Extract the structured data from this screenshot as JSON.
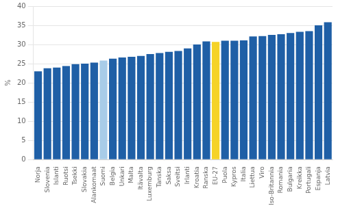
{
  "chart_data": {
    "type": "bar",
    "ylabel": "%",
    "categories": [
      "Norja",
      "Slovenia",
      "Islanti",
      "Ruotsi",
      "Tsekki",
      "Slovakia",
      "Alankomaat",
      "Suomi",
      "Belgia",
      "Unkari",
      "Malta",
      "Itävalta",
      "Luxemburg",
      "Tanska",
      "Saksa",
      "Sveitsi",
      "Irlanti",
      "Kroatia",
      "Ranska",
      "EU-27",
      "Puola",
      "Kypros",
      "Italia",
      "Liettua",
      "Viro",
      "Iso-Britannia",
      "Romania",
      "Bulgaria",
      "Kreikka",
      "Portugali",
      "Espanja",
      "Latvia"
    ],
    "values": [
      23.0,
      23.8,
      24.0,
      24.4,
      24.9,
      25.0,
      25.3,
      25.8,
      26.3,
      26.6,
      26.8,
      27.0,
      27.5,
      27.8,
      28.1,
      28.3,
      29.0,
      30.0,
      30.8,
      30.7,
      31.0,
      31.0,
      31.1,
      32.1,
      32.2,
      32.5,
      32.7,
      33.0,
      33.3,
      33.5,
      35.0,
      35.8
    ],
    "colors": [
      "#1f5fa6",
      "#1f5fa6",
      "#1f5fa6",
      "#1f5fa6",
      "#1f5fa6",
      "#1f5fa6",
      "#1f5fa6",
      "#a8cce8",
      "#1f5fa6",
      "#1f5fa6",
      "#1f5fa6",
      "#1f5fa6",
      "#1f5fa6",
      "#1f5fa6",
      "#1f5fa6",
      "#1f5fa6",
      "#1f5fa6",
      "#1f5fa6",
      "#1f5fa6",
      "#f5d328",
      "#1f5fa6",
      "#1f5fa6",
      "#1f5fa6",
      "#1f5fa6",
      "#1f5fa6",
      "#1f5fa6",
      "#1f5fa6",
      "#1f5fa6",
      "#1f5fa6",
      "#1f5fa6",
      "#1f5fa6",
      "#1f5fa6"
    ],
    "ylim": [
      0,
      40
    ],
    "yticks": [
      0,
      5,
      10,
      15,
      20,
      25,
      30,
      35,
      40
    ],
    "grid": true
  }
}
